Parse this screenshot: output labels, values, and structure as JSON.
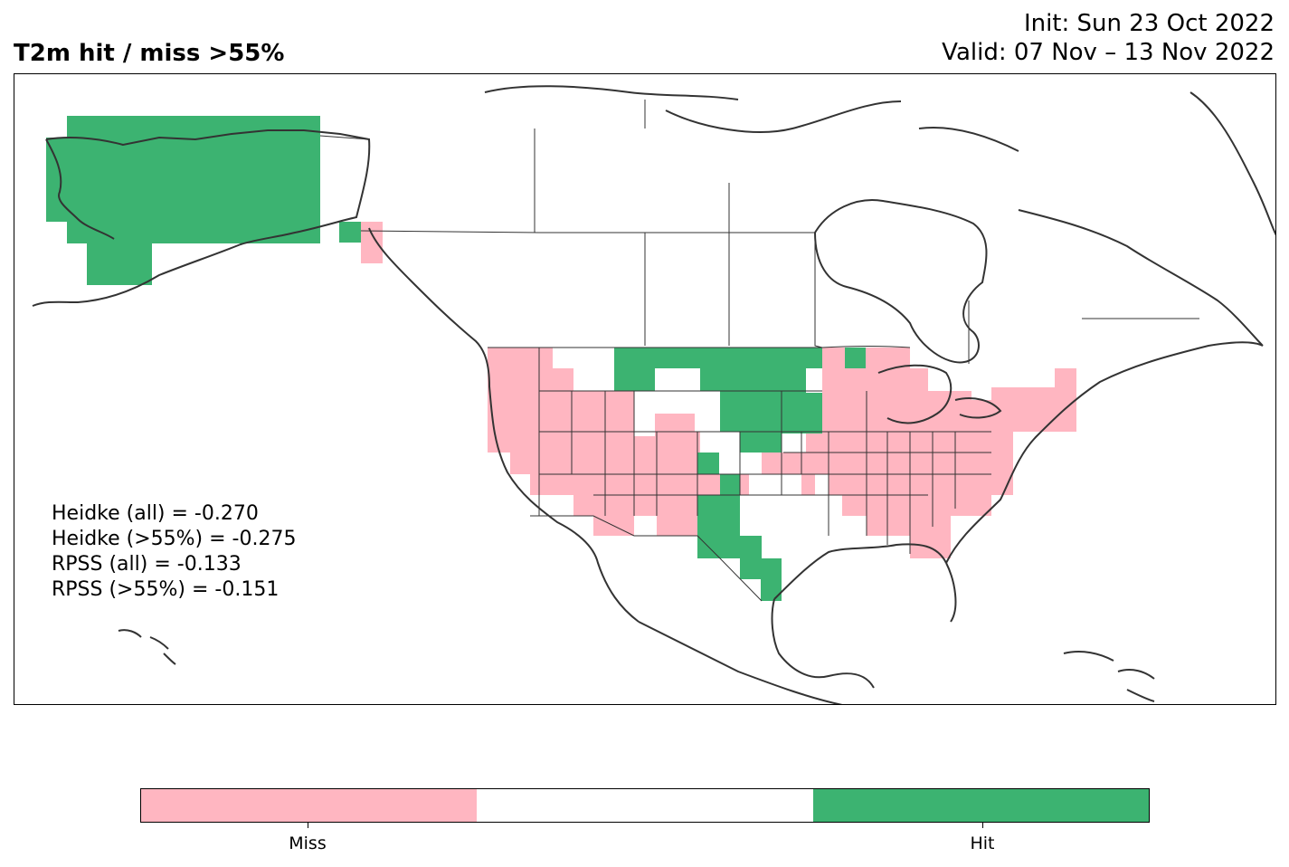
{
  "title": "T2m hit / miss  >55%",
  "info": {
    "init": "Init: Sun 23 Oct 2022",
    "valid": "Valid: 07 Nov – 13 Nov 2022"
  },
  "stats": [
    "Heidke (all) = -0.270",
    "Heidke (>55%) = -0.275",
    "RPSS (all) = -0.133",
    "RPSS (>55%) = -0.151"
  ],
  "colors": {
    "miss": "#FFB6C1",
    "neutral": "#FFFFFF",
    "hit": "#3CB371",
    "coastline": "#333333"
  },
  "legend": {
    "miss_label": "Miss",
    "hit_label": "Hit"
  }
}
